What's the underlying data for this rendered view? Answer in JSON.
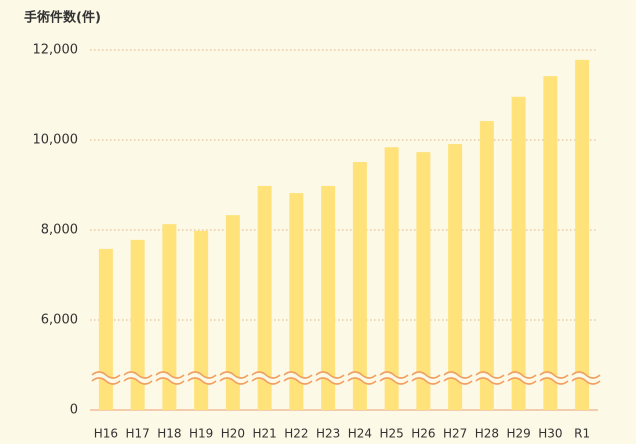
{
  "chart_data": {
    "type": "bar",
    "y_label": "手術件数(件)",
    "categories": [
      "H16",
      "H17",
      "H18",
      "H19",
      "H20",
      "H21",
      "H22",
      "H23",
      "H24",
      "H25",
      "H26",
      "H27",
      "H28",
      "H29",
      "H30",
      "R1"
    ],
    "values": [
      7580,
      7780,
      8130,
      7980,
      8330,
      8980,
      8820,
      8980,
      9510,
      9840,
      9730,
      9910,
      10420,
      10960,
      11420,
      11780
    ],
    "color": "#ffe27a",
    "ylim": [
      0,
      12000
    ],
    "yticks": [
      0,
      {
        "value": 6000,
        "label": "6,000"
      },
      {
        "value": 8000,
        "label": "8,000"
      },
      {
        "value": 10000,
        "label": "10,000"
      },
      {
        "value": 12000,
        "label": "12,000"
      }
    ],
    "grid": true
  }
}
